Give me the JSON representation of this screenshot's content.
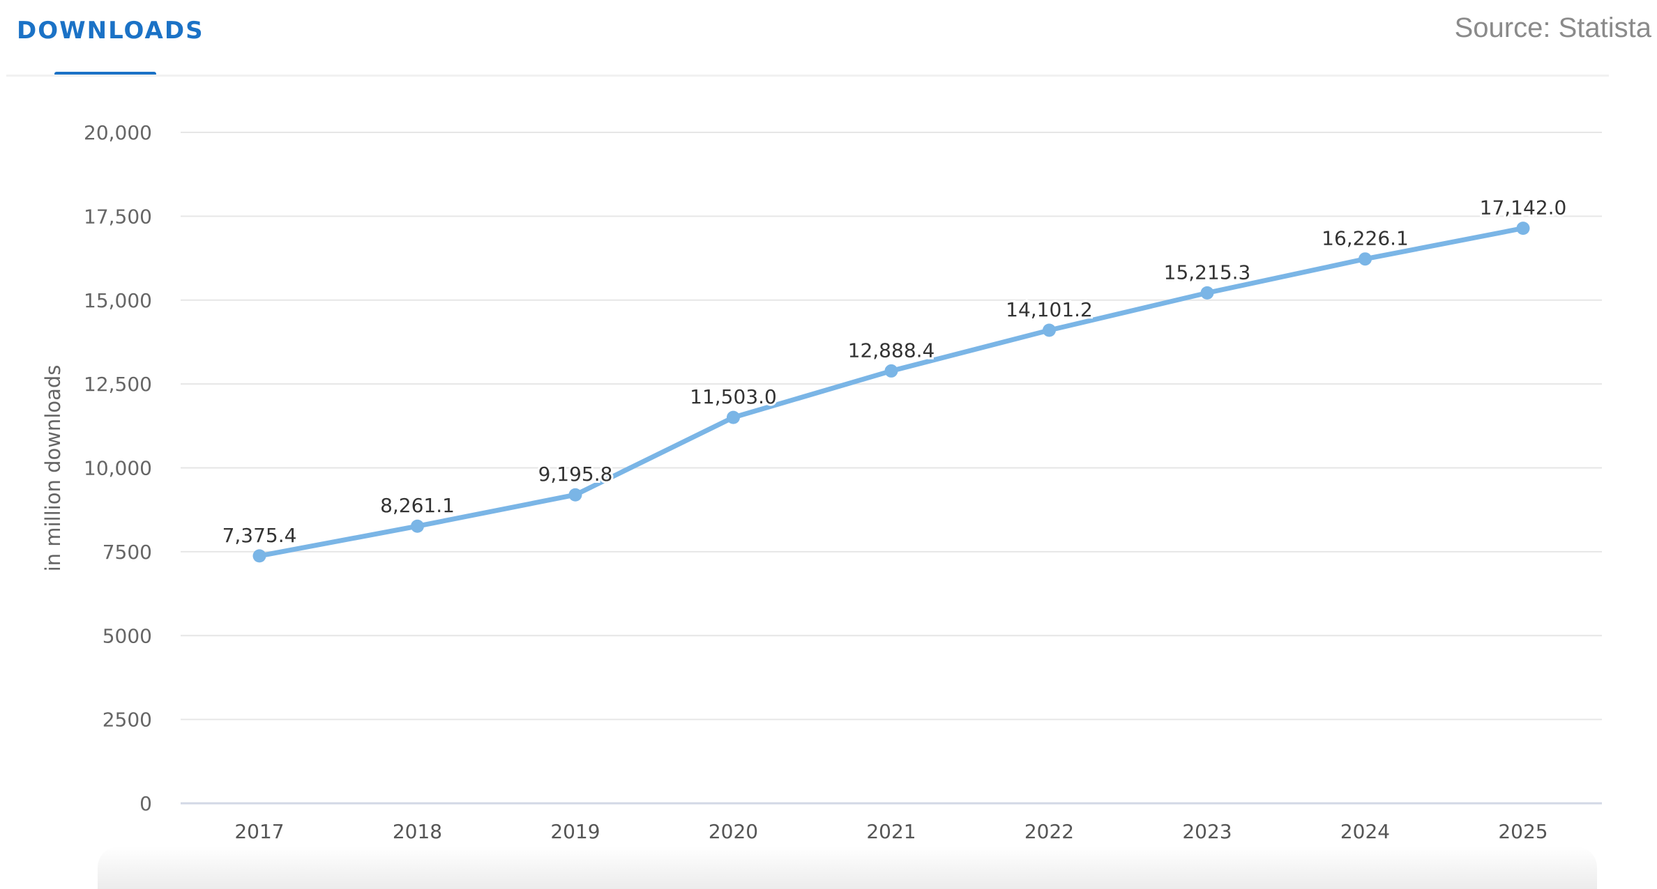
{
  "header": {
    "tab_label": "DOWNLOADS",
    "source": "Source: Statista"
  },
  "colors": {
    "accent": "#1b72c6",
    "line": "#7ab5e6"
  },
  "chart_data": {
    "type": "line",
    "title": "",
    "xlabel": "",
    "ylabel": "in million downloads",
    "categories": [
      "2017",
      "2018",
      "2019",
      "2020",
      "2021",
      "2022",
      "2023",
      "2024",
      "2025"
    ],
    "values": [
      7375.4,
      8261.1,
      9195.8,
      11503.0,
      12888.4,
      14101.2,
      15215.3,
      16226.1,
      17142.0
    ],
    "data_labels": [
      "7,375.4",
      "8,261.1",
      "9,195.8",
      "11,503.0",
      "12,888.4",
      "14,101.2",
      "15,215.3",
      "16,226.1",
      "17,142.0"
    ],
    "ylim": [
      0,
      20000
    ],
    "yticks": [
      0,
      2500,
      5000,
      7500,
      10000,
      12500,
      15000,
      17500,
      20000
    ],
    "ytick_labels": [
      "0",
      "2500",
      "5000",
      "7500",
      "10,000",
      "12,500",
      "15,000",
      "17,500",
      "20,000"
    ],
    "grid": true,
    "legend": "none"
  }
}
